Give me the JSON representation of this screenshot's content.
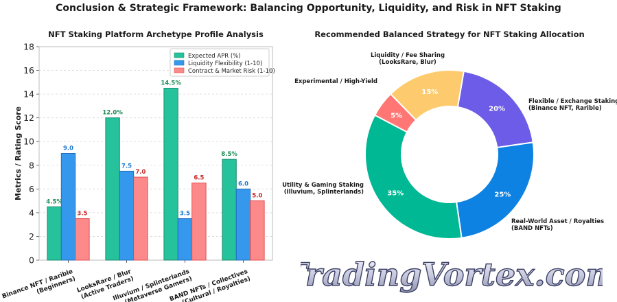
{
  "title": "Conclusion & Strategic Framework: Balancing Opportunity, Liquidity, and Risk in NFT Staking",
  "watermark": "TradingVortex.com",
  "chart_data": [
    {
      "type": "bar",
      "title": "NFT Staking Platform Archetype Profile Analysis",
      "xlabel": "",
      "ylabel": "Metrics / Rating Score",
      "ylim": [
        0,
        18
      ],
      "yticks": [
        "0",
        "2",
        "4",
        "6",
        "8",
        "10",
        "12",
        "14",
        "16",
        "18"
      ],
      "grid": true,
      "legend_position": "top-right",
      "categories": [
        [
          "Binance NFT / Rarible",
          "(Beginners)"
        ],
        [
          "LooksRare / Blur",
          "(Active Traders)"
        ],
        [
          "Illuvium / Splinterlands",
          "(Metaverse Gamers)"
        ],
        [
          "BAND NFTs / Collectives",
          "(Cultural / Royalties)"
        ]
      ],
      "series": [
        {
          "name": "Expected APR (%)",
          "color": "#25c29c",
          "edge": "#1b8e6c",
          "label_color": "#1e8a55",
          "values": [
            4.5,
            12.0,
            14.5,
            8.5
          ],
          "labels": [
            "4.5%",
            "12.0%",
            "14.5%",
            "8.5%"
          ]
        },
        {
          "name": "Liquidity Flexibility (1-10)",
          "color": "#3598ec",
          "edge": "#1f6fc0",
          "label_color": "#1f78d1",
          "values": [
            9.0,
            7.5,
            3.5,
            6.0
          ],
          "labels": [
            "9.0",
            "7.5",
            "3.5",
            "6.0"
          ]
        },
        {
          "name": "Contract & Market Risk (1-10)",
          "color": "#fd8a8a",
          "edge": "#e04d4d",
          "label_color": "#c62828",
          "values": [
            3.5,
            7.0,
            6.5,
            5.0
          ],
          "labels": [
            "3.5",
            "7.0",
            "6.5",
            "5.0"
          ]
        }
      ]
    },
    {
      "type": "pie",
      "style": "donut",
      "title": "Recommended Balanced Strategy for NFT Staking Allocation",
      "slices": [
        {
          "label": [
            "Flexible / Exchange Staking",
            "(Binance NFT, Rarible)"
          ],
          "value": 20,
          "pct": "20%",
          "color": "#6c5ce7"
        },
        {
          "label": [
            "Real-World Asset / Royalties",
            "(BAND NFTs)"
          ],
          "value": 25,
          "pct": "25%",
          "color": "#0e82e2"
        },
        {
          "label": [
            "Utility & Gaming Staking",
            "(Illuvium, Splinterlands)"
          ],
          "value": 35,
          "pct": "35%",
          "color": "#00b894"
        },
        {
          "label": [
            "Experimental / High-Yield"
          ],
          "value": 5,
          "pct": "5%",
          "color": "#ff7675"
        },
        {
          "label": [
            "Liquidity / Fee Sharing",
            "(LooksRare, Blur)"
          ],
          "value": 15,
          "pct": "15%",
          "color": "#fdcb6e"
        }
      ]
    }
  ]
}
